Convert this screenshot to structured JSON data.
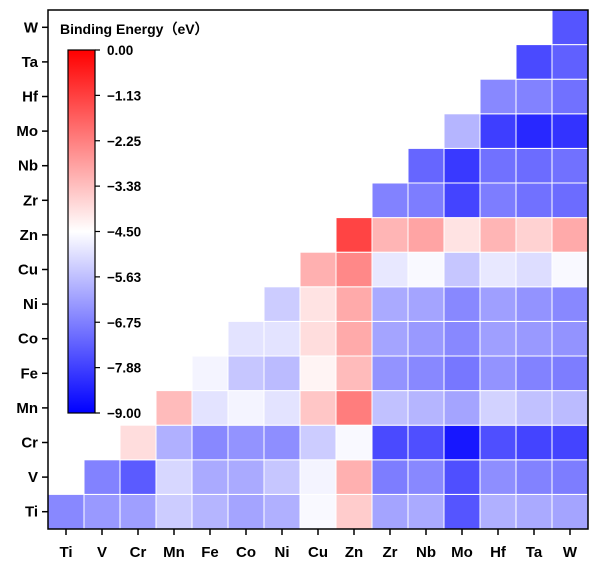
{
  "chart_data": {
    "type": "heatmap",
    "title": "",
    "xlabel": "",
    "ylabel": "",
    "x_categories": [
      "Ti",
      "V",
      "Cr",
      "Mn",
      "Fe",
      "Co",
      "Ni",
      "Cu",
      "Zn",
      "Zr",
      "Nb",
      "Mo",
      "Hf",
      "Ta",
      "W"
    ],
    "y_categories": [
      "Ti",
      "V",
      "Cr",
      "Mn",
      "Fe",
      "Co",
      "Ni",
      "Cu",
      "Zn",
      "Zr",
      "Nb",
      "Mo",
      "Hf",
      "Ta",
      "W"
    ],
    "colorbar": {
      "title": "Binding Energy（eV）",
      "min": -9.0,
      "max": 0.0,
      "ticks": [
        "0.00",
        "−1.13",
        "−2.25",
        "−3.38",
        "−4.50",
        "−5.63",
        "−6.75",
        "−7.88",
        "−9.00"
      ],
      "colors": {
        "low": "#0000ff",
        "mid": "#ffffff",
        "high": "#ff0000"
      }
    },
    "grid": true,
    "legend_position": "top-left",
    "values": [
      [
        -6.6,
        -6.3,
        -6.2,
        -5.4,
        -5.8,
        -6.1,
        -5.9,
        -4.6,
        -3.6,
        -6.1,
        -6.0,
        -7.5,
        -5.9,
        -6.0,
        -6.1
      ],
      [
        null,
        -6.7,
        -7.4,
        -5.2,
        -6.0,
        -6.0,
        -5.5,
        -4.7,
        -3.1,
        -6.8,
        -6.6,
        -7.6,
        -6.5,
        -6.7,
        -6.8
      ],
      [
        null,
        null,
        -3.9,
        -5.9,
        -6.6,
        -6.4,
        -6.5,
        -5.4,
        -4.6,
        -7.7,
        -7.6,
        -8.6,
        -7.6,
        -7.8,
        -7.8
      ],
      [
        null,
        null,
        null,
        -3.3,
        -5.0,
        -4.7,
        -5.0,
        -3.5,
        -2.2,
        -5.6,
        -5.8,
        -6.1,
        -5.3,
        -5.6,
        -5.7
      ],
      [
        null,
        null,
        null,
        null,
        -4.7,
        -5.5,
        -5.7,
        -4.3,
        -3.3,
        -6.4,
        -6.6,
        -6.9,
        -6.4,
        -6.7,
        -6.8
      ],
      [
        null,
        null,
        null,
        null,
        null,
        -5.0,
        -5.0,
        -3.9,
        -3.0,
        -6.1,
        -6.3,
        -6.6,
        -6.2,
        -6.3,
        -6.4
      ],
      [
        null,
        null,
        null,
        null,
        null,
        null,
        -5.4,
        -4.0,
        -3.0,
        -6.0,
        -6.1,
        -6.6,
        -6.2,
        -6.4,
        -6.6
      ],
      [
        null,
        null,
        null,
        null,
        null,
        null,
        null,
        -3.1,
        -2.4,
        -4.9,
        -4.6,
        -5.5,
        -4.9,
        -5.1,
        -4.6
      ],
      [
        null,
        null,
        null,
        null,
        null,
        null,
        null,
        null,
        -1.2,
        -3.2,
        -2.9,
        -4.0,
        -3.2,
        -3.7,
        -3.0
      ],
      [
        null,
        null,
        null,
        null,
        null,
        null,
        null,
        null,
        null,
        -6.7,
        -6.8,
        -7.8,
        -6.8,
        -7.0,
        -7.1
      ],
      [
        null,
        null,
        null,
        null,
        null,
        null,
        null,
        null,
        null,
        null,
        -7.2,
        -8.0,
        -7.0,
        -7.1,
        -7.0
      ],
      [
        null,
        null,
        null,
        null,
        null,
        null,
        null,
        null,
        null,
        null,
        null,
        -5.8,
        -7.9,
        -8.3,
        -8.1
      ],
      [
        null,
        null,
        null,
        null,
        null,
        null,
        null,
        null,
        null,
        null,
        null,
        null,
        -6.6,
        -6.7,
        -7.0
      ],
      [
        null,
        null,
        null,
        null,
        null,
        null,
        null,
        null,
        null,
        null,
        null,
        null,
        null,
        -7.7,
        -7.3
      ],
      [
        null,
        null,
        null,
        null,
        null,
        null,
        null,
        null,
        null,
        null,
        null,
        null,
        null,
        null,
        -7.5
      ]
    ]
  }
}
